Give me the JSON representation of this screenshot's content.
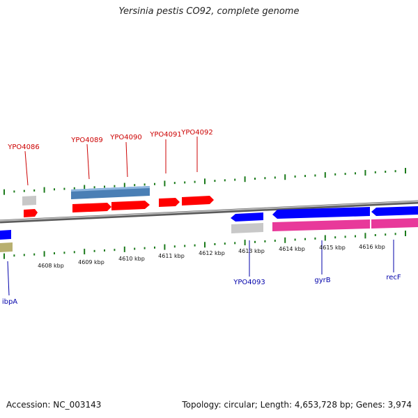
{
  "title": "Yersinia pestis CO92, complete genome",
  "accession_text": "Accession: NC_003143",
  "summary_text": "Topology: circular; Length: 4,653,728 bp; Genes: 3,974",
  "colors": {
    "forward_gene": "#ff0000",
    "reverse_gene": "#0000ff",
    "forward_label": "#cc0000",
    "reverse_label": "#0000aa",
    "tick": "#1a7a1a",
    "backbone": "#888888",
    "cds_forward": "#4a7fb5",
    "cds_reverse": "#e8399a",
    "pseudo": "#c8c8c8",
    "rna": "#b8b070"
  },
  "scale_labels": [
    "4608 kbp",
    "4609 kbp",
    "4610 kbp",
    "4611 kbp",
    "4612 kbp",
    "4613 kbp",
    "4614 kbp",
    "4615 kbp",
    "4616 kbp"
  ],
  "gene_labels": [
    {
      "name": "YPO4086",
      "strand": "forward"
    },
    {
      "name": "YPO4089",
      "strand": "forward"
    },
    {
      "name": "YPO4090",
      "strand": "forward"
    },
    {
      "name": "YPO4091",
      "strand": "forward"
    },
    {
      "name": "YPO4092",
      "strand": "forward"
    },
    {
      "name": "ibpA",
      "strand": "reverse"
    },
    {
      "name": "YPO4093",
      "strand": "reverse"
    },
    {
      "name": "gyrB",
      "strand": "reverse"
    },
    {
      "name": "recF",
      "strand": "reverse"
    }
  ]
}
